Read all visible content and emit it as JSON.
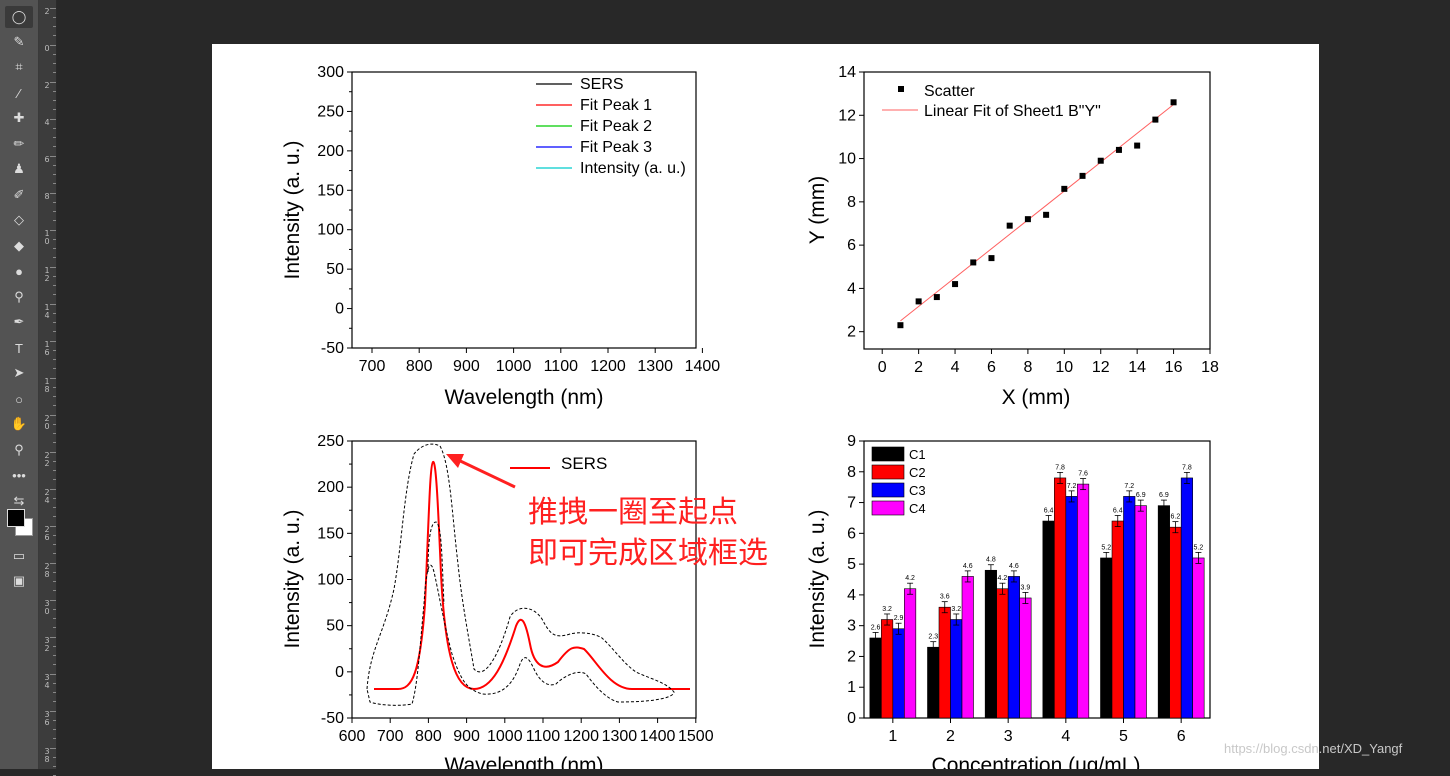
{
  "toolbar": {
    "tools": [
      {
        "name": "lasso-tool-icon",
        "glyph": "◯",
        "active": true
      },
      {
        "name": "quick-selection-icon",
        "glyph": "✎"
      },
      {
        "name": "crop-icon",
        "glyph": "⌗"
      },
      {
        "name": "eyedropper-icon",
        "glyph": "⁄"
      },
      {
        "name": "healing-brush-icon",
        "glyph": "✚"
      },
      {
        "name": "brush-icon",
        "glyph": "✏"
      },
      {
        "name": "clone-stamp-icon",
        "glyph": "♟"
      },
      {
        "name": "history-brush-icon",
        "glyph": "✐"
      },
      {
        "name": "eraser-icon",
        "glyph": "◇"
      },
      {
        "name": "paint-bucket-icon",
        "glyph": "◆"
      },
      {
        "name": "blur-icon",
        "glyph": "●"
      },
      {
        "name": "dodge-icon",
        "glyph": "⚲"
      },
      {
        "name": "pen-icon",
        "glyph": "✒"
      },
      {
        "name": "type-icon",
        "glyph": "T"
      },
      {
        "name": "path-selection-icon",
        "glyph": "➤"
      },
      {
        "name": "ellipse-icon",
        "glyph": "○"
      },
      {
        "name": "hand-icon",
        "glyph": "✋"
      },
      {
        "name": "zoom-icon",
        "glyph": "⚲"
      },
      {
        "name": "more-tools-icon",
        "glyph": "•••"
      }
    ]
  },
  "ruler": {
    "labels": [
      "2",
      "0",
      "2",
      "4",
      "6",
      "8",
      "1\n0",
      "1\n2",
      "1\n4",
      "1\n6",
      "1\n8",
      "2\n0",
      "2\n2",
      "2\n4",
      "2\n6",
      "2\n8",
      "3\n0",
      "3\n2",
      "3\n4",
      "3\n6",
      "3\n8"
    ]
  },
  "charts": {
    "chart1": {
      "type": "line",
      "xlabel": "Wavelength (nm)",
      "ylabel": "Intensity (a. u.)",
      "xticks": [
        "700",
        "800",
        "900",
        "1000",
        "1100",
        "1200",
        "1300",
        "1400"
      ],
      "yticks": [
        "300",
        "250",
        "200",
        "150",
        "100",
        "50",
        "0",
        "-50"
      ],
      "legend": [
        {
          "label": "SERS",
          "color": "#000000"
        },
        {
          "label": "Fit Peak 1",
          "color": "#ff0000"
        },
        {
          "label": "Fit Peak 2",
          "color": "#00cc00"
        },
        {
          "label": "Fit Peak 3",
          "color": "#0000ff"
        },
        {
          "label": "Intensity (a. u.)",
          "color": "#00cccc"
        }
      ]
    },
    "chart2": {
      "type": "scatter",
      "xlabel": "X (mm)",
      "ylabel": "Y (mm)",
      "xticks": [
        "0",
        "2",
        "4",
        "6",
        "8",
        "10",
        "12",
        "14",
        "16",
        "18"
      ],
      "yticks": [
        "14",
        "12",
        "10",
        "8",
        "6",
        "4",
        "2"
      ],
      "legend": [
        {
          "label": "Scatter",
          "color": "#000000"
        },
        {
          "label": "Linear Fit of Sheet1 B\"Y\"",
          "color": "#ff6060"
        }
      ],
      "points": [
        [
          1,
          2.3
        ],
        [
          2,
          3.4
        ],
        [
          3,
          3.6
        ],
        [
          4,
          4.2
        ],
        [
          5,
          5.2
        ],
        [
          6,
          5.4
        ],
        [
          7,
          6.9
        ],
        [
          8,
          7.2
        ],
        [
          9,
          7.4
        ],
        [
          10,
          8.6
        ],
        [
          11,
          9.2
        ],
        [
          12,
          9.9
        ],
        [
          13,
          10.4
        ],
        [
          14,
          10.6
        ],
        [
          15,
          11.8
        ],
        [
          16,
          12.6
        ]
      ],
      "fit": [
        [
          1,
          2.5
        ],
        [
          16,
          12.5
        ]
      ],
      "xlim": [
        -1,
        18
      ],
      "ylim": [
        1.2,
        14
      ]
    },
    "chart3": {
      "type": "line",
      "xlabel": "Wavelength (nm)",
      "ylabel": "Intensity (a. u.)",
      "xticks": [
        "600",
        "700",
        "800",
        "900",
        "1000",
        "1100",
        "1200",
        "1300",
        "1400",
        "1500"
      ],
      "yticks": [
        "250",
        "200",
        "150",
        "100",
        "50",
        "0",
        "-50"
      ],
      "legend": [
        {
          "label": "SERS",
          "color": "#ff0000"
        }
      ],
      "annotation_line1": "推拽一圈至起点",
      "annotation_line2": "即可完成区域框选",
      "annotation_color": "#ff2020"
    },
    "chart4": {
      "type": "bar",
      "xlabel": "Concentration (ug/mL)",
      "ylabel": "Intensity (a. u.)",
      "categories": [
        "1",
        "2",
        "3",
        "4",
        "5",
        "6"
      ],
      "yticks": [
        "9",
        "8",
        "7",
        "6",
        "5",
        "4",
        "3",
        "2",
        "1",
        "0"
      ],
      "ylim": [
        0,
        9
      ],
      "series": [
        {
          "name": "C1",
          "color": "#000000",
          "values": [
            2.6,
            2.3,
            4.8,
            6.4,
            5.2,
            6.9
          ],
          "labels": [
            "2.6",
            "2.3",
            "4.8",
            "6.4",
            "5.2",
            "6.9"
          ]
        },
        {
          "name": "C2",
          "color": "#ff0000",
          "values": [
            3.2,
            3.6,
            4.2,
            7.8,
            6.4,
            6.2
          ],
          "labels": [
            "3.2",
            "3.6",
            "4.2",
            "7.8",
            "6.4",
            "6.2"
          ]
        },
        {
          "name": "C3",
          "color": "#0000ff",
          "values": [
            2.9,
            3.2,
            4.6,
            7.2,
            7.2,
            7.8
          ],
          "labels": [
            "2.9",
            "3.2",
            "4.6",
            "7.2",
            "7.2",
            "7.8"
          ]
        },
        {
          "name": "C4",
          "color": "#ff00ff",
          "values": [
            4.2,
            4.6,
            3.9,
            7.6,
            6.9,
            5.2
          ],
          "labels": [
            "4.2",
            "4.6",
            "3.9",
            "7.6",
            "6.9",
            "5.2"
          ]
        }
      ]
    }
  },
  "watermark": "https://blog.csdn.net/XD_Yangf"
}
